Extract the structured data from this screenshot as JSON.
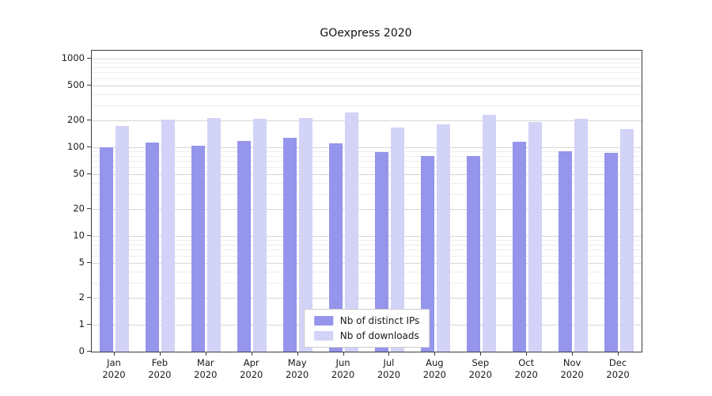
{
  "chart_data": {
    "type": "bar",
    "title": "GOexpress 2020",
    "categories": [
      "Jan 2020",
      "Feb 2020",
      "Mar 2020",
      "Apr 2020",
      "May 2020",
      "Jun 2020",
      "Jul 2020",
      "Aug 2020",
      "Sep 2020",
      "Oct 2020",
      "Nov 2020",
      "Dec 2020"
    ],
    "series": [
      {
        "name": "Nb of distinct IPs",
        "color": "#9595ec",
        "values": [
          100,
          113,
          104,
          118,
          128,
          110,
          88,
          80,
          80,
          115,
          90,
          87
        ]
      },
      {
        "name": "Nb of downloads",
        "color": "#d3d3f8",
        "values": [
          175,
          205,
          213,
          210,
          213,
          245,
          168,
          180,
          230,
          195,
          210,
          162
        ]
      }
    ],
    "yscale": "symlog",
    "yticks": [
      0,
      1,
      2,
      5,
      10,
      20,
      50,
      100,
      200,
      500,
      1000
    ],
    "ylim": [
      0,
      1000
    ],
    "xlabel": "",
    "ylabel": "",
    "grid": true,
    "legend_position": "lower-center-inside"
  }
}
